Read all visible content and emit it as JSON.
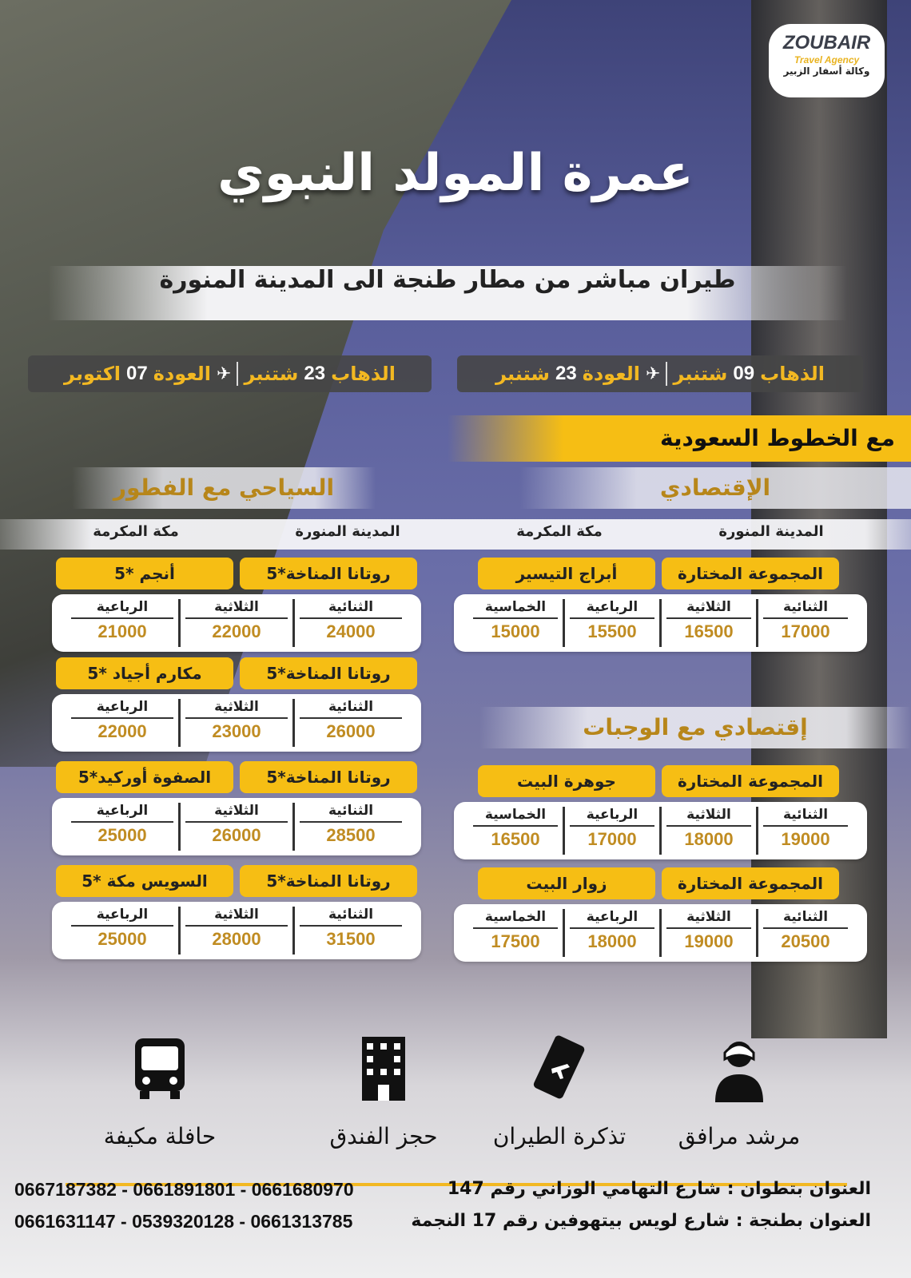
{
  "logo": {
    "brand": "ZOUBAIR",
    "tagline": "Travel Agency",
    "arabic": "وكالة أسفار الزبير"
  },
  "title": "عمرة المولد النبوي",
  "subtitle": "طيران مباشر من مطار طنجة الى المدينة المنورة",
  "dates": [
    {
      "depart_label": "الذهاب",
      "depart_day": "09",
      "depart_month": "شتنبر",
      "return_label": "العودة",
      "return_day": "23",
      "return_month": "شتنبر"
    },
    {
      "depart_label": "الذهاب",
      "depart_day": "23",
      "depart_month": "شتنبر",
      "return_label": "العودة",
      "return_day": "07",
      "return_month": "اكتوبر"
    }
  ],
  "airline": "مع الخطوط السعودية",
  "economy": {
    "heading": "الإقتصادي",
    "city1": "المدينة المنورة",
    "city2": "مكة المكرمة",
    "packages": [
      {
        "medina": "المجموعة المختارة",
        "mecca": "أبراج التيسير",
        "rooms": [
          "الثنائية",
          "الثلاثية",
          "الرباعية",
          "الخماسية"
        ],
        "prices": [
          "17000",
          "16500",
          "15500",
          "15000"
        ]
      }
    ]
  },
  "economy_meals": {
    "heading": "إقتصادي مع الوجبات",
    "packages": [
      {
        "medina": "المجموعة المختارة",
        "mecca": "جوهرة البيت",
        "rooms": [
          "الثنائية",
          "الثلاثية",
          "الرباعية",
          "الخماسية"
        ],
        "prices": [
          "19000",
          "18000",
          "17000",
          "16500"
        ]
      },
      {
        "medina": "المجموعة المختارة",
        "mecca": "زوار البيت",
        "rooms": [
          "الثنائية",
          "الثلاثية",
          "الرباعية",
          "الخماسية"
        ],
        "prices": [
          "20500",
          "19000",
          "18000",
          "17500"
        ]
      }
    ]
  },
  "tourist": {
    "heading": "السياحي مع الفطور",
    "city1": "المدينة المنورة",
    "city2": "مكة المكرمة",
    "packages": [
      {
        "medina": "روتانا المناخة*5",
        "mecca": "أنجم *5",
        "rooms": [
          "الثنائية",
          "الثلاثية",
          "الرباعية"
        ],
        "prices": [
          "24000",
          "22000",
          "21000"
        ]
      },
      {
        "medina": "روتانا المناخة*5",
        "mecca": "مكارم أجياد *5",
        "rooms": [
          "الثنائية",
          "الثلاثية",
          "الرباعية"
        ],
        "prices": [
          "26000",
          "23000",
          "22000"
        ]
      },
      {
        "medina": "روتانا المناخة*5",
        "mecca": "الصفوة أوركيد*5",
        "rooms": [
          "الثنائية",
          "الثلاثية",
          "الرباعية"
        ],
        "prices": [
          "28500",
          "26000",
          "25000"
        ]
      },
      {
        "medina": "روتانا المناخة*5",
        "mecca": "السويس مكة *5",
        "rooms": [
          "الثنائية",
          "الثلاثية",
          "الرباعية"
        ],
        "prices": [
          "31500",
          "28000",
          "25000"
        ]
      }
    ]
  },
  "features": [
    {
      "icon": "guide-icon",
      "label": "مرشد مرافق"
    },
    {
      "icon": "plane-ticket-icon",
      "label": "تذكرة الطيران"
    },
    {
      "icon": "hotel-icon",
      "label": "حجز الفندق"
    },
    {
      "icon": "bus-icon",
      "label": "حافلة مكيفة"
    }
  ],
  "contact": [
    {
      "address": "العنوان بتطوان : شارع التهامي الوزاني رقم 147",
      "phones": "0667187382 - 0661891801 - 0661680970"
    },
    {
      "address": "العنوان بطنجة : شارع لويس بيتهوفين رقم 17 النجمة",
      "phones": "0661631147 - 0539320128 - 0661313785"
    }
  ],
  "colors": {
    "accent": "#f6be14",
    "price": "#c08c22",
    "heading_gold": "#b7861a"
  }
}
